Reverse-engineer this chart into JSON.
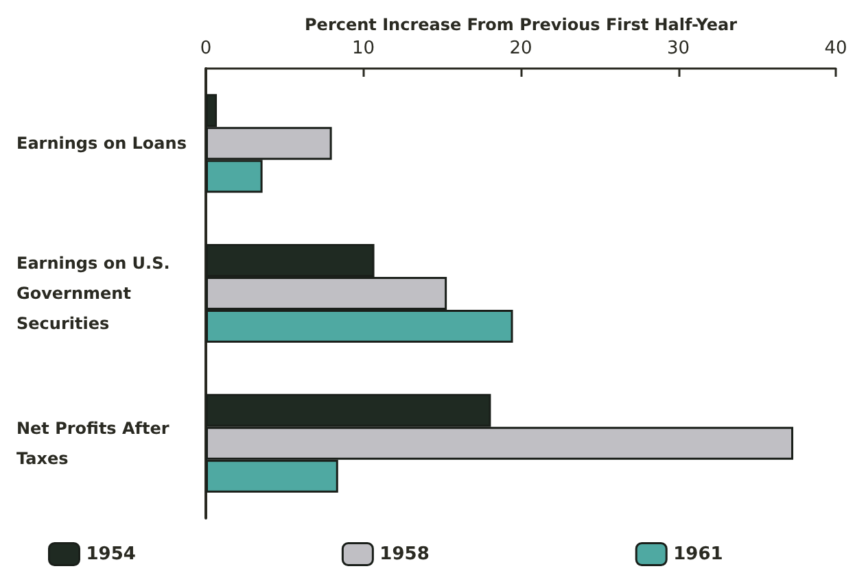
{
  "chart_data": {
    "type": "bar",
    "orientation": "horizontal",
    "xlabel": "Percent Increase From Previous First Half-Year",
    "categories": [
      "Earnings on Loans",
      "Earnings on U.S. Government Securities",
      "Net Profits After Taxes"
    ],
    "series": [
      {
        "name": "1954",
        "color": "#1f2a22",
        "values": [
          0.7,
          10.7,
          18.1
        ]
      },
      {
        "name": "1958",
        "color": "#c0bfc4",
        "values": [
          8.0,
          15.3,
          37.3
        ]
      },
      {
        "name": "1961",
        "color": "#4fa9a2",
        "values": [
          3.6,
          19.5,
          8.4
        ]
      }
    ],
    "xlim": [
      0,
      40
    ],
    "xticks": [
      0,
      10,
      20,
      30,
      40
    ],
    "grid": false,
    "legend": "bottom"
  }
}
